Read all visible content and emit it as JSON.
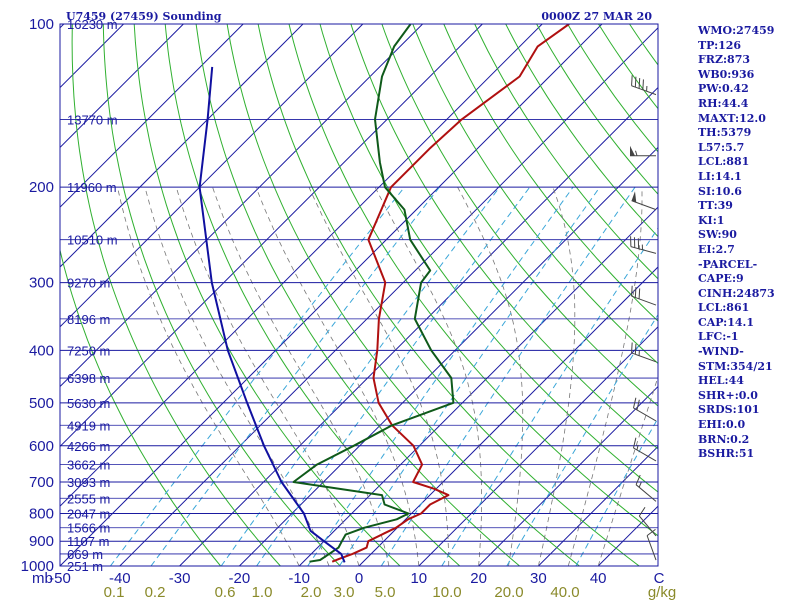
{
  "header": {
    "station": "U7459 (27459) Sounding",
    "time": "0000Z 27 MAR 20"
  },
  "indices": [
    "WMO:27459",
    "TP:126",
    "FRZ:873",
    "WB0:936",
    "PW:0.42",
    "RH:44.4",
    "MAXT:12.0",
    "TH:5379",
    "L57:5.7",
    "LCL:881",
    "LI:14.1",
    "SI:10.6",
    "TT:39",
    "KI:1",
    "SW:90",
    "EI:2.7",
    "-PARCEL-",
    "CAPE:9",
    "CINH:24873",
    "LCL:861",
    "CAP:14.1",
    "LFC:-1",
    "-WIND-",
    "STM:354/21",
    "HEL:44",
    "SHR+:0.0",
    "SRDS:101",
    "EHI:0.0",
    "BRN:0.2",
    "BSHR:51"
  ],
  "chart_data": {
    "type": "line",
    "subtype": "skew-T log-P sounding",
    "y_axis": {
      "label": "mb",
      "scale": "log",
      "range": [
        1000,
        100
      ],
      "ticks": [
        100,
        200,
        300,
        400,
        500,
        600,
        700,
        800,
        900,
        1000
      ]
    },
    "x_axis": {
      "label": "C",
      "range": [
        -50,
        50
      ],
      "ticks": [
        "-50",
        "-40",
        "-30",
        "-20",
        "-10",
        "0",
        "10",
        "20",
        "30",
        "40"
      ]
    },
    "mixing_ratio_axis": {
      "label": "g/kg",
      "ticks": [
        "0.1",
        "0.2",
        "0.6",
        "1.0",
        "2.0",
        "3.0",
        "5.0",
        "10.0",
        "20.0",
        "40.0"
      ]
    },
    "height_levels": [
      {
        "p": 100,
        "label": "16230 m"
      },
      {
        "p": 150,
        "label": "13770 m"
      },
      {
        "p": 200,
        "label": "11960 m"
      },
      {
        "p": 250,
        "label": "10510 m"
      },
      {
        "p": 300,
        "label": "9270 m"
      },
      {
        "p": 350,
        "label": "8196 m"
      },
      {
        "p": 400,
        "label": "7250 m"
      },
      {
        "p": 450,
        "label": "6398 m"
      },
      {
        "p": 500,
        "label": "5630 m"
      },
      {
        "p": 550,
        "label": "4919 m"
      },
      {
        "p": 600,
        "label": "4266 m"
      },
      {
        "p": 650,
        "label": "3662 m"
      },
      {
        "p": 700,
        "label": "3093 m"
      },
      {
        "p": 750,
        "label": "2555 m"
      },
      {
        "p": 800,
        "label": "2047 m"
      },
      {
        "p": 850,
        "label": "1566 m"
      },
      {
        "p": 900,
        "label": "1107 m"
      },
      {
        "p": 950,
        "label": "669 m"
      },
      {
        "p": 1000,
        "label": "251 m"
      }
    ],
    "series": [
      {
        "role": "temperature",
        "color": "#b01010",
        "points": [
          [
            982,
            -5.2
          ],
          [
            970,
            -4.5
          ],
          [
            950,
            -3.1
          ],
          [
            925,
            -1.8
          ],
          [
            900,
            -2.6
          ],
          [
            870,
            -1.2
          ],
          [
            850,
            -0.2
          ],
          [
            820,
            0.4
          ],
          [
            800,
            1.6
          ],
          [
            770,
            1.6
          ],
          [
            740,
            3.1
          ],
          [
            720,
            -0.4
          ],
          [
            700,
            -5.0
          ],
          [
            650,
            -6.4
          ],
          [
            600,
            -11.0
          ],
          [
            550,
            -18.0
          ],
          [
            500,
            -24.0
          ],
          [
            450,
            -29.0
          ],
          [
            400,
            -33.0
          ],
          [
            350,
            -38.0
          ],
          [
            300,
            -43.0
          ],
          [
            250,
            -53.0
          ],
          [
            200,
            -58.0
          ],
          [
            170,
            -58.0
          ],
          [
            150,
            -57.5
          ],
          [
            125,
            -55.0
          ],
          [
            110,
            -57.0
          ],
          [
            100,
            -55.5
          ]
        ]
      },
      {
        "role": "dewpoint",
        "color": "#0f5a1a",
        "points": [
          [
            982,
            -9.0
          ],
          [
            975,
            -7.5
          ],
          [
            950,
            -7.0
          ],
          [
            925,
            -6.5
          ],
          [
            900,
            -7.0
          ],
          [
            875,
            -7.5
          ],
          [
            850,
            -5.5
          ],
          [
            820,
            -1.5
          ],
          [
            800,
            -0.5
          ],
          [
            770,
            -6.0
          ],
          [
            740,
            -8.0
          ],
          [
            700,
            -25.0
          ],
          [
            650,
            -24.0
          ],
          [
            600,
            -21.0
          ],
          [
            550,
            -18.0
          ],
          [
            500,
            -11.5
          ],
          [
            450,
            -16.0
          ],
          [
            400,
            -24.0
          ],
          [
            350,
            -32.0
          ],
          [
            300,
            -37.0
          ],
          [
            285,
            -37.5
          ],
          [
            250,
            -46.0
          ],
          [
            220,
            -52.0
          ],
          [
            200,
            -59.0
          ],
          [
            180,
            -64.0
          ],
          [
            150,
            -72.0
          ],
          [
            125,
            -78.0
          ],
          [
            110,
            -81.0
          ],
          [
            100,
            -82.0
          ]
        ]
      },
      {
        "role": "parcel",
        "color": "#1010a0",
        "points": [
          [
            985,
            -3.0
          ],
          [
            950,
            -5.0
          ],
          [
            900,
            -10.0
          ],
          [
            861,
            -14.0
          ],
          [
            800,
            -18.0
          ],
          [
            700,
            -27.0
          ],
          [
            600,
            -36.0
          ],
          [
            500,
            -46.0
          ],
          [
            400,
            -58.0
          ],
          [
            300,
            -72.0
          ],
          [
            200,
            -90.0
          ],
          [
            150,
            -100.0
          ],
          [
            120,
            -108.0
          ]
        ]
      }
    ],
    "wind_barbs": [
      {
        "p": 135,
        "dir": 290,
        "kt": 45
      },
      {
        "p": 175,
        "dir": 270,
        "kt": 55
      },
      {
        "p": 220,
        "dir": 290,
        "kt": 50
      },
      {
        "p": 265,
        "dir": 285,
        "kt": 35
      },
      {
        "p": 330,
        "dir": 290,
        "kt": 30
      },
      {
        "p": 420,
        "dir": 290,
        "kt": 25
      },
      {
        "p": 540,
        "dir": 300,
        "kt": 20
      },
      {
        "p": 640,
        "dir": 300,
        "kt": 15
      },
      {
        "p": 760,
        "dir": 310,
        "kt": 15
      },
      {
        "p": 880,
        "dir": 320,
        "kt": 10
      },
      {
        "p": 975,
        "dir": 340,
        "kt": 10
      }
    ],
    "grid": {
      "isotherm_step_c": 10,
      "dry_adiabats": true,
      "moist_adiabats": true,
      "mixing_ratio_lines": true
    },
    "colors": {
      "frame": "#1a1aa0",
      "isobar": "#1a1aa0",
      "isotherm": "#1a1aa0",
      "dry_adiabat": "#30b030",
      "moist_adiabat": "#777777",
      "mixing_ratio": "#3aa6d8",
      "wind": "#444444",
      "text": "#1a1aa0",
      "mixing_label": "#8a8a2a"
    }
  }
}
